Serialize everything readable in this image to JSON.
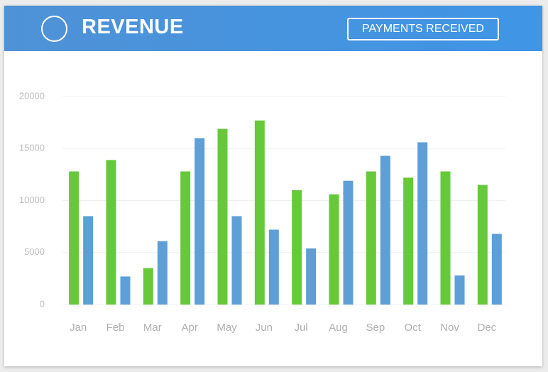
{
  "chart_data": {
    "type": "bar",
    "title": "REVENUE",
    "button": "PAYMENTS RECEIVED",
    "categories": [
      "Jan",
      "Feb",
      "Mar",
      "Apr",
      "May",
      "Jun",
      "Jul",
      "Aug",
      "Sep",
      "Oct",
      "Nov",
      "Dec"
    ],
    "series": [
      {
        "color": "#66c93a",
        "values": [
          12800,
          13900,
          3500,
          12800,
          16900,
          17700,
          11000,
          10600,
          12800,
          12200,
          12800,
          11500
        ]
      },
      {
        "color": "#5d9fd6",
        "values": [
          8500,
          2700,
          6100,
          16000,
          8500,
          7200,
          5400,
          11900,
          14300,
          15600,
          2800,
          6800
        ]
      }
    ],
    "ylim": [
      0,
      20000
    ],
    "yticks": [
      0,
      5000,
      10000,
      15000,
      20000
    ],
    "grid": true
  }
}
